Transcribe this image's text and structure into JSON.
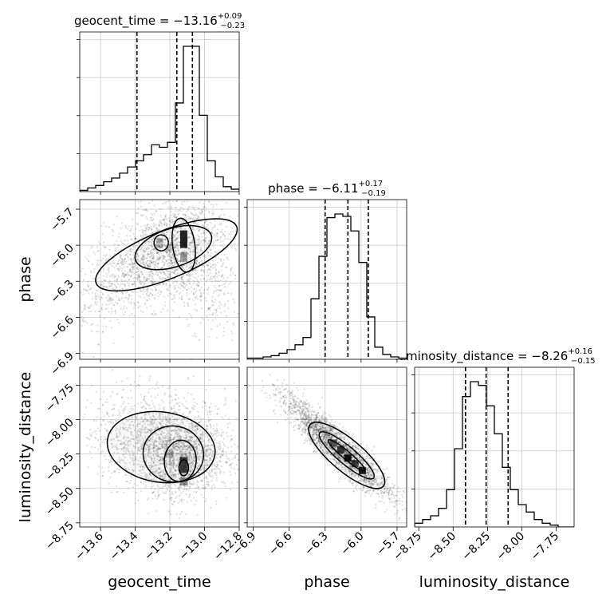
{
  "chart_data": {
    "type": "corner",
    "grid": true,
    "parameters": [
      "geocent_time",
      "phase",
      "luminosity_distance"
    ],
    "axis_labels": [
      "geocent_time",
      "phase",
      "luminosity_distance"
    ],
    "titles": [
      {
        "param": "geocent_time",
        "prefix": "geocent_time = ",
        "median": "−13.16",
        "upper": "+0.09",
        "lower": "−0.23"
      },
      {
        "param": "phase",
        "prefix": "phase = ",
        "median": "−6.11",
        "upper": "+0.17",
        "lower": "−0.19"
      },
      {
        "param": "luminosity_distance",
        "prefix": "luminosity_distance = ",
        "median": "−8.26",
        "upper": "+0.16",
        "lower": "−0.15"
      }
    ],
    "ranges": {
      "geocent_time": [
        -13.72,
        -12.8
      ],
      "phase": [
        -6.95,
        -5.62
      ],
      "luminosity_distance": [
        -8.78,
        -7.62
      ]
    },
    "ticks": {
      "geocent_time": {
        "values": [
          -13.6,
          -13.4,
          -13.2,
          -13.0,
          -12.8
        ],
        "labels": [
          "−13.6",
          "−13.4",
          "−13.2",
          "−13.0",
          "−12.8"
        ]
      },
      "phase": {
        "values": [
          -6.9,
          -6.6,
          -6.3,
          -6.0,
          -5.7
        ],
        "labels": [
          "−6.9",
          "−6.6",
          "−6.3",
          "−6.0",
          "−5.7"
        ]
      },
      "luminosity_distance": {
        "values": [
          -8.75,
          -8.5,
          -8.25,
          -8.0,
          -7.75
        ],
        "labels": [
          "−8.75",
          "−8.50",
          "−8.25",
          "−8.00",
          "−7.75"
        ]
      }
    },
    "quantiles": {
      "geocent_time": [
        -13.39,
        -13.16,
        -13.07
      ],
      "phase": [
        -6.3,
        -6.11,
        -5.94
      ],
      "luminosity_distance": [
        -8.41,
        -8.26,
        -8.1
      ]
    },
    "histograms": {
      "geocent_time": {
        "edges_range": [
          -13.72,
          -12.8
        ],
        "counts": [
          1,
          3,
          5,
          8,
          11,
          15,
          20,
          25,
          30,
          38,
          36,
          40,
          72,
          118,
          118,
          62,
          25,
          12,
          4,
          2
        ]
      },
      "phase": {
        "edges_range": [
          -6.95,
          -5.62
        ],
        "counts": [
          1,
          1,
          2,
          3,
          5,
          8,
          12,
          18,
          50,
          85,
          117,
          120,
          118,
          106,
          80,
          35,
          10,
          4,
          2,
          1
        ]
      },
      "luminosity_distance": {
        "edges_range": [
          -8.78,
          -7.62
        ],
        "counts": [
          2,
          4,
          6,
          10,
          20,
          42,
          70,
          78,
          76,
          65,
          50,
          32,
          20,
          12,
          8,
          4,
          2,
          1,
          0,
          0
        ]
      }
    },
    "scatter_seed": 7,
    "scatter_count": 2600
  }
}
